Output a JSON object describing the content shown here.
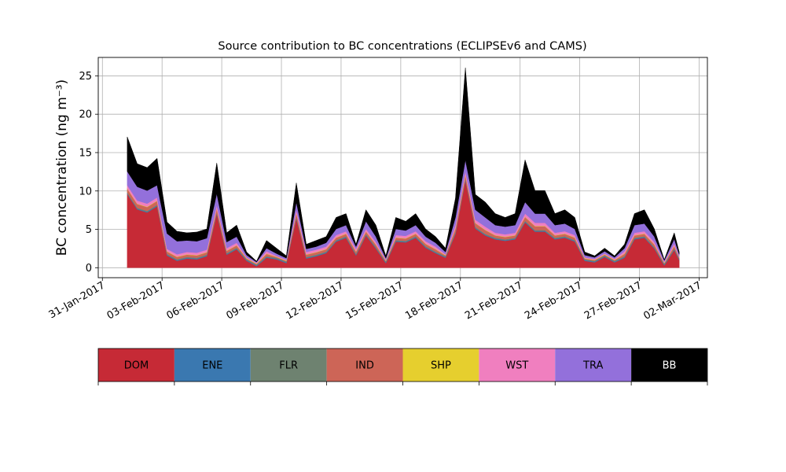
{
  "chart_data": {
    "type": "stacked_area",
    "title": "Source contribution to BC concentrations (ECLIPSEv6 and CAMS)",
    "y_label": "BC concentration (ng m⁻³)",
    "x": [
      "2017-02-01T06:00",
      "2017-02-01T18:00",
      "2017-02-02T06:00",
      "2017-02-02T18:00",
      "2017-02-03T06:00",
      "2017-02-03T18:00",
      "2017-02-04T06:00",
      "2017-02-04T18:00",
      "2017-02-05T06:00",
      "2017-02-05T18:00",
      "2017-02-06T06:00",
      "2017-02-06T18:00",
      "2017-02-07T06:00",
      "2017-02-07T18:00",
      "2017-02-08T06:00",
      "2017-02-08T18:00",
      "2017-02-09T06:00",
      "2017-02-09T18:00",
      "2017-02-10T06:00",
      "2017-02-10T18:00",
      "2017-02-11T06:00",
      "2017-02-11T18:00",
      "2017-02-12T06:00",
      "2017-02-12T18:00",
      "2017-02-13T06:00",
      "2017-02-13T18:00",
      "2017-02-14T06:00",
      "2017-02-14T18:00",
      "2017-02-15T06:00",
      "2017-02-15T18:00",
      "2017-02-16T06:00",
      "2017-02-16T18:00",
      "2017-02-17T06:00",
      "2017-02-17T18:00",
      "2017-02-18T06:00",
      "2017-02-18T18:00",
      "2017-02-19T06:00",
      "2017-02-19T18:00",
      "2017-02-20T06:00",
      "2017-02-20T18:00",
      "2017-02-21T06:00",
      "2017-02-21T18:00",
      "2017-02-22T06:00",
      "2017-02-22T18:00",
      "2017-02-23T06:00",
      "2017-02-23T18:00",
      "2017-02-24T06:00",
      "2017-02-24T18:00",
      "2017-02-25T06:00",
      "2017-02-25T18:00",
      "2017-02-26T06:00",
      "2017-02-26T18:00",
      "2017-02-27T06:00",
      "2017-02-27T18:00",
      "2017-02-28T06:00",
      "2017-02-28T18:00",
      "2017-03-01T00:00"
    ],
    "series": [
      {
        "name": "DOM",
        "color": "#c62a36",
        "values": [
          9.6,
          7.6,
          7.2,
          8.0,
          1.6,
          0.9,
          1.2,
          1.1,
          1.5,
          7.0,
          1.7,
          2.4,
          0.9,
          0.2,
          1.3,
          1.1,
          0.6,
          6.4,
          1.2,
          1.5,
          1.9,
          3.4,
          3.9,
          1.6,
          4.2,
          2.5,
          0.6,
          3.4,
          3.3,
          3.9,
          2.6,
          1.9,
          1.3,
          4.4,
          11.4,
          5.1,
          4.2,
          3.7,
          3.5,
          3.7,
          5.9,
          4.7,
          4.7,
          3.7,
          3.9,
          3.4,
          0.9,
          0.7,
          1.4,
          0.7,
          1.3,
          3.7,
          3.9,
          2.5,
          0.3,
          2.3,
          1.0
        ]
      },
      {
        "name": "ENE",
        "color": "#3a78b0",
        "values": [
          0.1,
          0.1,
          0.1,
          0.1,
          0.1,
          0.1,
          0.1,
          0.1,
          0.1,
          0.1,
          0.1,
          0.1,
          0.1,
          0.1,
          0.1,
          0.1,
          0.1,
          0.1,
          0.1,
          0.1,
          0.1,
          0.1,
          0.1,
          0.1,
          0.1,
          0.1,
          0.1,
          0.1,
          0.1,
          0.1,
          0.1,
          0.1,
          0.1,
          0.1,
          0.1,
          0.1,
          0.1,
          0.1,
          0.1,
          0.1,
          0.1,
          0.1,
          0.1,
          0.1,
          0.1,
          0.1,
          0.1,
          0.1,
          0.1,
          0.1,
          0.1,
          0.1,
          0.1,
          0.1,
          0.1,
          0.1,
          0.1
        ]
      },
      {
        "name": "FLR",
        "color": "#6e8270",
        "values": [
          0.1,
          0.1,
          0.1,
          0.1,
          0.1,
          0.1,
          0.1,
          0.1,
          0.1,
          0.1,
          0.1,
          0.1,
          0.1,
          0.1,
          0.1,
          0.1,
          0.1,
          0.1,
          0.1,
          0.1,
          0.1,
          0.1,
          0.1,
          0.1,
          0.1,
          0.1,
          0.1,
          0.1,
          0.1,
          0.1,
          0.1,
          0.1,
          0.1,
          0.1,
          0.1,
          0.1,
          0.1,
          0.1,
          0.1,
          0.1,
          0.1,
          0.1,
          0.1,
          0.1,
          0.1,
          0.1,
          0.1,
          0.1,
          0.1,
          0.1,
          0.1,
          0.1,
          0.1,
          0.1,
          0.1,
          0.1,
          0.1
        ]
      },
      {
        "name": "IND",
        "color": "#cd6557",
        "values": [
          0.5,
          0.5,
          0.5,
          0.5,
          0.3,
          0.3,
          0.3,
          0.3,
          0.3,
          0.5,
          0.3,
          0.3,
          0.1,
          0.1,
          0.3,
          0.1,
          0.1,
          0.5,
          0.3,
          0.3,
          0.3,
          0.3,
          0.3,
          0.3,
          0.3,
          0.3,
          0.1,
          0.3,
          0.3,
          0.3,
          0.3,
          0.3,
          0.1,
          0.5,
          0.5,
          0.5,
          0.5,
          0.3,
          0.3,
          0.3,
          0.5,
          0.5,
          0.5,
          0.3,
          0.3,
          0.3,
          0.1,
          0.1,
          0.1,
          0.1,
          0.3,
          0.3,
          0.3,
          0.3,
          0.1,
          0.3,
          0.1
        ]
      },
      {
        "name": "SHP",
        "color": "#e6cf2e",
        "values": [
          0.05,
          0.05,
          0.05,
          0.05,
          0.05,
          0.05,
          0.05,
          0.05,
          0.05,
          0.05,
          0.05,
          0.05,
          0.05,
          0.05,
          0.05,
          0.05,
          0.05,
          0.05,
          0.05,
          0.05,
          0.05,
          0.05,
          0.05,
          0.05,
          0.05,
          0.05,
          0.05,
          0.05,
          0.05,
          0.05,
          0.05,
          0.05,
          0.05,
          0.05,
          0.05,
          0.05,
          0.05,
          0.05,
          0.05,
          0.05,
          0.05,
          0.05,
          0.05,
          0.05,
          0.05,
          0.05,
          0.05,
          0.05,
          0.05,
          0.05,
          0.05,
          0.05,
          0.05,
          0.05,
          0.05,
          0.05,
          0.05
        ]
      },
      {
        "name": "WST",
        "color": "#f07fbf",
        "values": [
          0.4,
          0.4,
          0.4,
          0.4,
          0.3,
          0.3,
          0.3,
          0.3,
          0.3,
          0.4,
          0.3,
          0.3,
          0.1,
          0.1,
          0.3,
          0.1,
          0.1,
          0.4,
          0.3,
          0.3,
          0.3,
          0.3,
          0.3,
          0.3,
          0.3,
          0.3,
          0.1,
          0.3,
          0.3,
          0.3,
          0.3,
          0.3,
          0.1,
          0.4,
          0.4,
          0.4,
          0.4,
          0.3,
          0.3,
          0.3,
          0.4,
          0.4,
          0.4,
          0.3,
          0.3,
          0.3,
          0.1,
          0.1,
          0.1,
          0.1,
          0.3,
          0.3,
          0.3,
          0.3,
          0.1,
          0.3,
          0.1
        ]
      },
      {
        "name": "TRA",
        "color": "#9370db",
        "values": [
          1.8,
          1.8,
          1.7,
          1.6,
          2,
          1.7,
          1.5,
          1.5,
          1.5,
          1.5,
          0.8,
          0.8,
          0.3,
          0.1,
          0.4,
          0.3,
          0.2,
          1,
          0.4,
          0.4,
          0.5,
          0.8,
          0.8,
          0.3,
          1,
          0.7,
          0.2,
          0.8,
          0.7,
          0.8,
          0.6,
          0.5,
          0.3,
          1,
          1.5,
          1.3,
          1.2,
          1,
          1,
          1,
          1.5,
          1.2,
          1.2,
          1,
          1,
          0.8,
          0.3,
          0.2,
          0.3,
          0.2,
          0.4,
          1,
          1,
          0.7,
          0.2,
          0.6,
          0.3
        ]
      },
      {
        "name": "BB",
        "color": "#000000",
        "values": [
          4.5,
          3,
          3,
          3.5,
          1.5,
          1.3,
          1,
          1.2,
          1.2,
          4,
          1.2,
          1.5,
          0.4,
          0.1,
          1,
          0.7,
          0.3,
          2.5,
          0.6,
          0.8,
          0.8,
          1.5,
          1.5,
          0.3,
          1.5,
          1.5,
          0.3,
          1.5,
          1.2,
          1.5,
          1,
          0.8,
          0.5,
          2.5,
          12,
          2,
          2,
          1.5,
          1.2,
          1.5,
          5.5,
          3,
          3,
          1.5,
          1.8,
          1.5,
          0.4,
          0.2,
          0.4,
          0.2,
          0.5,
          1.5,
          1.8,
          1,
          0.1,
          0.8,
          0.3
        ]
      }
    ],
    "xlim": [
      "2017-01-30T19:00",
      "2017-03-02T10:00"
    ],
    "xticks": [
      {
        "value": "2017-01-31T00:00",
        "label": "31-Jan-2017"
      },
      {
        "value": "2017-02-03T00:00",
        "label": "03-Feb-2017"
      },
      {
        "value": "2017-02-06T00:00",
        "label": "06-Feb-2017"
      },
      {
        "value": "2017-02-09T00:00",
        "label": "09-Feb-2017"
      },
      {
        "value": "2017-02-12T00:00",
        "label": "12-Feb-2017"
      },
      {
        "value": "2017-02-15T00:00",
        "label": "15-Feb-2017"
      },
      {
        "value": "2017-02-18T00:00",
        "label": "18-Feb-2017"
      },
      {
        "value": "2017-02-21T00:00",
        "label": "21-Feb-2017"
      },
      {
        "value": "2017-02-24T00:00",
        "label": "24-Feb-2017"
      },
      {
        "value": "2017-02-27T00:00",
        "label": "27-Feb-2017"
      },
      {
        "value": "2017-03-02T00:00",
        "label": "02-Mar-2017"
      }
    ],
    "ylim": [
      -1.3,
      27.4
    ],
    "yticks": [
      0,
      5,
      10,
      15,
      20,
      25
    ],
    "grid": true,
    "legend": "bottom"
  }
}
